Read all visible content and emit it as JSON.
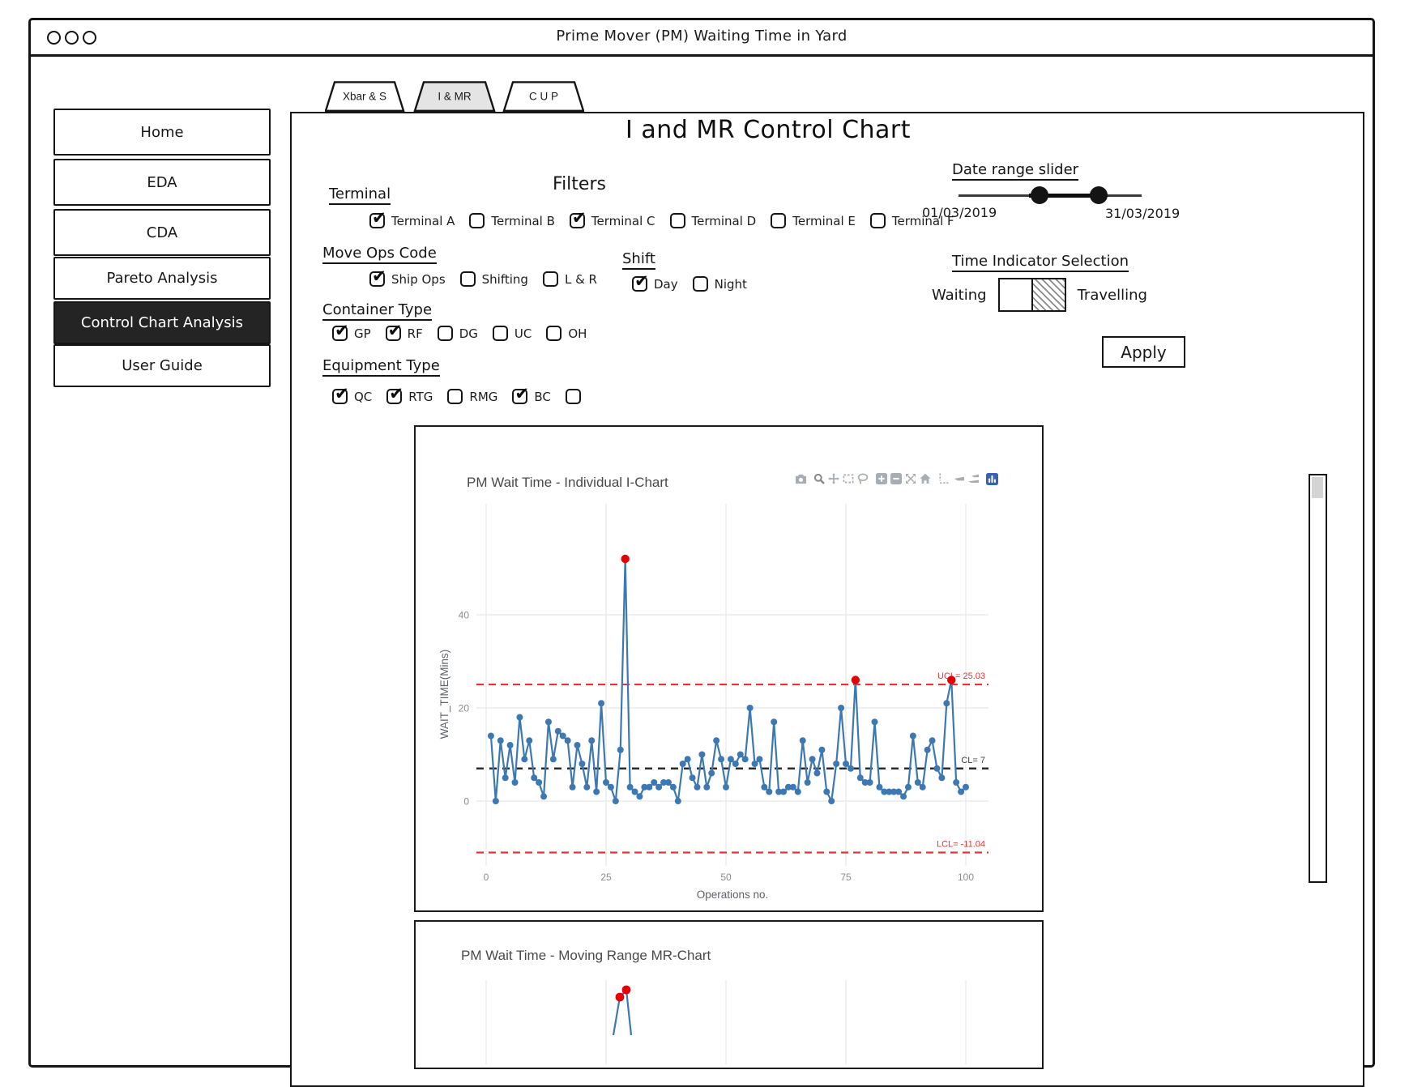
{
  "window_title": "Prime Mover (PM) Waiting Time in Yard",
  "sidebar": {
    "items": [
      {
        "label": "Home",
        "active": false
      },
      {
        "label": "EDA",
        "active": false
      },
      {
        "label": "CDA",
        "active": false
      },
      {
        "label": "Pareto Analysis",
        "active": false
      },
      {
        "label": "Control Chart Analysis",
        "active": true
      },
      {
        "label": "User Guide",
        "active": false
      }
    ]
  },
  "tabs": [
    {
      "label": "Xbar & S",
      "active": false
    },
    {
      "label": "I & MR",
      "active": true
    },
    {
      "label": "C U P",
      "active": false
    }
  ],
  "page_title": "I and MR Control Chart",
  "filters": {
    "heading": "Filters",
    "groups": [
      {
        "label": "Terminal",
        "options": [
          {
            "label": "Terminal A",
            "checked": true
          },
          {
            "label": "Terminal B",
            "checked": false
          },
          {
            "label": "Terminal C",
            "checked": true
          },
          {
            "label": "Terminal D",
            "checked": false
          },
          {
            "label": "Terminal E",
            "checked": false
          },
          {
            "label": "Terminal F",
            "checked": false
          }
        ]
      },
      {
        "label": "Move Ops Code",
        "options": [
          {
            "label": "Ship Ops",
            "checked": true
          },
          {
            "label": "Shifting",
            "checked": false
          },
          {
            "label": "L & R",
            "checked": false
          }
        ]
      },
      {
        "label": "Shift",
        "options": [
          {
            "label": "Day",
            "checked": true
          },
          {
            "label": "Night",
            "checked": false
          }
        ]
      },
      {
        "label": "Container Type",
        "options": [
          {
            "label": "GP",
            "checked": true
          },
          {
            "label": "RF",
            "checked": true
          },
          {
            "label": "DG",
            "checked": false
          },
          {
            "label": "UC",
            "checked": false
          },
          {
            "label": "OH",
            "checked": false
          }
        ]
      },
      {
        "label": "Equipment Type",
        "options": [
          {
            "label": "QC",
            "checked": true
          },
          {
            "label": "RTG",
            "checked": true
          },
          {
            "label": "RMG",
            "checked": false
          },
          {
            "label": "BC",
            "checked": true
          },
          {
            "label": "",
            "checked": false
          }
        ]
      }
    ]
  },
  "date_range": {
    "label": "Date range slider",
    "start_date": "01/03/2019",
    "end_date": "31/03/2019"
  },
  "time_indicator": {
    "label": "Time Indicator Selection",
    "left_option": "Waiting",
    "right_option": "Travelling",
    "selected": "Waiting"
  },
  "apply_label": "Apply",
  "modebar_icons": [
    "camera-icon",
    "zoom-icon",
    "pan-icon",
    "box-select-icon",
    "lasso-icon",
    "zoom-in-icon",
    "zoom-out-icon",
    "autoscale-icon",
    "reset-axes-icon",
    "spikelines-icon",
    "hover-closest-icon",
    "hover-compare-icon",
    "plotly-logo-icon"
  ],
  "chart_data": [
    {
      "type": "line",
      "title": "PM Wait Time - Individual I-Chart",
      "xlabel": "Operations no.",
      "ylabel": "WAIT_TIME(Mins)",
      "xticks": [
        0,
        25,
        50,
        75,
        100
      ],
      "yticks": [
        0,
        20,
        40
      ],
      "xlim": [
        -3,
        103
      ],
      "ylim": [
        -14,
        57
      ],
      "x_start": 1,
      "values": [
        14,
        0,
        13,
        5,
        12,
        4,
        18,
        9,
        13,
        5,
        4,
        1,
        17,
        9,
        15,
        14,
        13,
        3,
        12,
        8,
        3,
        13,
        2,
        21,
        4,
        3,
        0,
        11,
        52,
        3,
        2,
        1,
        3,
        3,
        4,
        3,
        4,
        4,
        3,
        0,
        8,
        9,
        5,
        3,
        10,
        3,
        6,
        13,
        9,
        3,
        9,
        8,
        10,
        9,
        20,
        8,
        9,
        3,
        2,
        17,
        2,
        2,
        3,
        3,
        2,
        13,
        4,
        9,
        6,
        11,
        2,
        0,
        8,
        20,
        8,
        7,
        26,
        5,
        4,
        4,
        17,
        3,
        2,
        2,
        2,
        2,
        1,
        3,
        14,
        4,
        3,
        11,
        13,
        7,
        5,
        21,
        26,
        4,
        2,
        3
      ],
      "outlier_indices": [
        28,
        76,
        96
      ],
      "control_limits": {
        "ucl": {
          "label": "UCL= 25.03",
          "value": 25.03
        },
        "cl": {
          "label": "CL= 7",
          "value": 7
        },
        "lcl": {
          "label": "LCL= -11.04",
          "value": -11.04
        }
      },
      "line_color": "#3d78b3",
      "outlier_color": "#e60000",
      "limit_line_color": "#f03030",
      "center_line_color": "#2b2b2b",
      "grid": true,
      "legend": "none"
    },
    {
      "type": "line",
      "title": "PM Wait Time - Moving Range MR-Chart",
      "outliers_visible": 2,
      "outlier_color": "#e60000",
      "line_color": "#3d78b3",
      "note": "chart clipped at bottom edge of viewport"
    }
  ],
  "colors": {
    "accent_blue": "#3d78b3",
    "outlier_red": "#e60000",
    "active_nav_bg": "#242424",
    "active_tab_bg": "#e4e4e4",
    "plotly_logo_blue": "#3a63ad",
    "icon_gray": "#a7adb4"
  }
}
